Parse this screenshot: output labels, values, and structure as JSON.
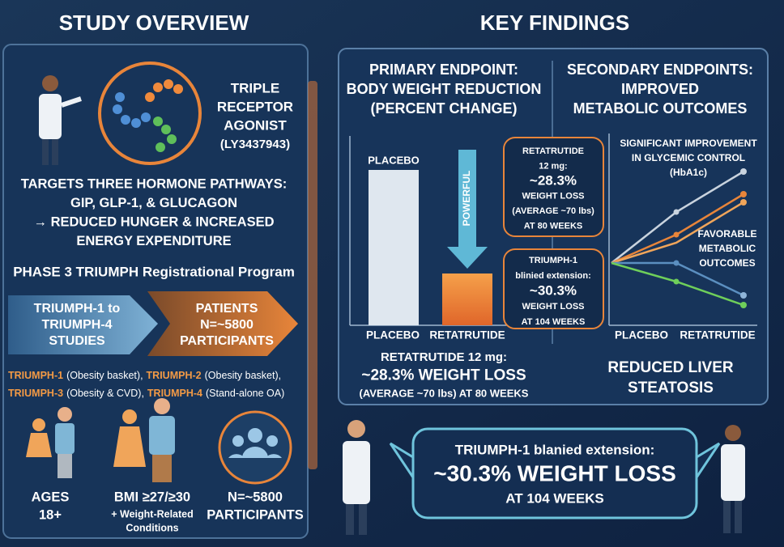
{
  "left": {
    "title": "STUDY OVERVIEW",
    "drug": [
      "TRIPLE",
      "RECEPTOR",
      "AGONIST",
      "(LY3437943)"
    ],
    "targets": [
      "TARGETS THREE HORMONE PATHWAYS:",
      "GIP, GLP-1, & GLUCAGON",
      "→ REDUCED HUNGER & INCREASED",
      "ENERGY EXPENDITURE"
    ],
    "program": "PHASE 3 TRIUMPH Registrational Program",
    "arrows": [
      [
        "TRIUMPH-1 to",
        "TRIUMPH-4",
        "STUDIES"
      ],
      [
        "PATIENTS",
        "N=~5800",
        "PARTICIPANTS"
      ]
    ],
    "studies": [
      {
        "name": "TRIUMPH-1",
        "desc": "(Obesity basket),"
      },
      {
        "name": "TRIUMPH-2",
        "desc": "(Obesity basket),"
      },
      {
        "name": "TRIUMPH-3",
        "desc": "(Obesity & CVD),"
      },
      {
        "name": "TRIUMPH-4",
        "desc": "(Stand-alone OA)"
      }
    ],
    "criteria": [
      {
        "lines": [
          "AGES",
          "18+"
        ]
      },
      {
        "lines": [
          "BMI ≥27/≥30"
        ],
        "note": [
          "+ Weight-Related",
          "Conditions"
        ]
      },
      {
        "lines": [
          "N=~5800",
          "PARTICIPANTS"
        ]
      }
    ]
  },
  "right": {
    "title": "KEY FINDINGS",
    "primary": {
      "heading": "PRIMARY ENDPOINT:",
      "lines": [
        "BODY WEIGHT REDUCTION",
        "(PERCENT CHANGE)"
      ]
    },
    "secondary": {
      "heading": "SECONDARY ENDPOINTS:",
      "lines": [
        "IMPROVED",
        "METABOLIC OUTCOMES"
      ]
    },
    "bar_panel": {
      "bar_label": "PLACEBO",
      "arrow_label": "POWERFUL",
      "x_labels": [
        "PLACEBO",
        "RETATRUTIDE"
      ],
      "callout_1": [
        "RETATRUTIDE",
        "12 mg:",
        "~28.3%",
        "WEIGHT LOSS",
        "(AVERAGE ~70 lbs)",
        "AT 80 WEEKS"
      ],
      "callout_2": [
        "TRIUMPH-1",
        "blinied extension:",
        "~30.3%",
        "WEIGHT LOSS",
        "AT 104 WEEKS"
      ],
      "summary": [
        "RETATRUTIDE 12 mg:",
        "~28.3% WEIGHT LOSS",
        "(AVERAGE ~70 lbs) AT 80 WEEKS"
      ]
    },
    "line_panel": {
      "note_1": [
        "SIGNIFICANT IMPROVEMENT",
        "IN GLYCEMIC CONTROL",
        "(HbA1c)"
      ],
      "note_2": [
        "FAVORABLE",
        "METABOLIC",
        "OUTCOMES"
      ],
      "x_labels": [
        "PLACEBO",
        "RETATRUTIDE"
      ],
      "liver": [
        "REDUCED LIVER",
        "STEATOSIS"
      ]
    }
  },
  "banner": [
    "TRIUMPH-1 blanied extension:",
    "~30.3% WEIGHT LOSS",
    "AT 104 WEEKS"
  ]
}
